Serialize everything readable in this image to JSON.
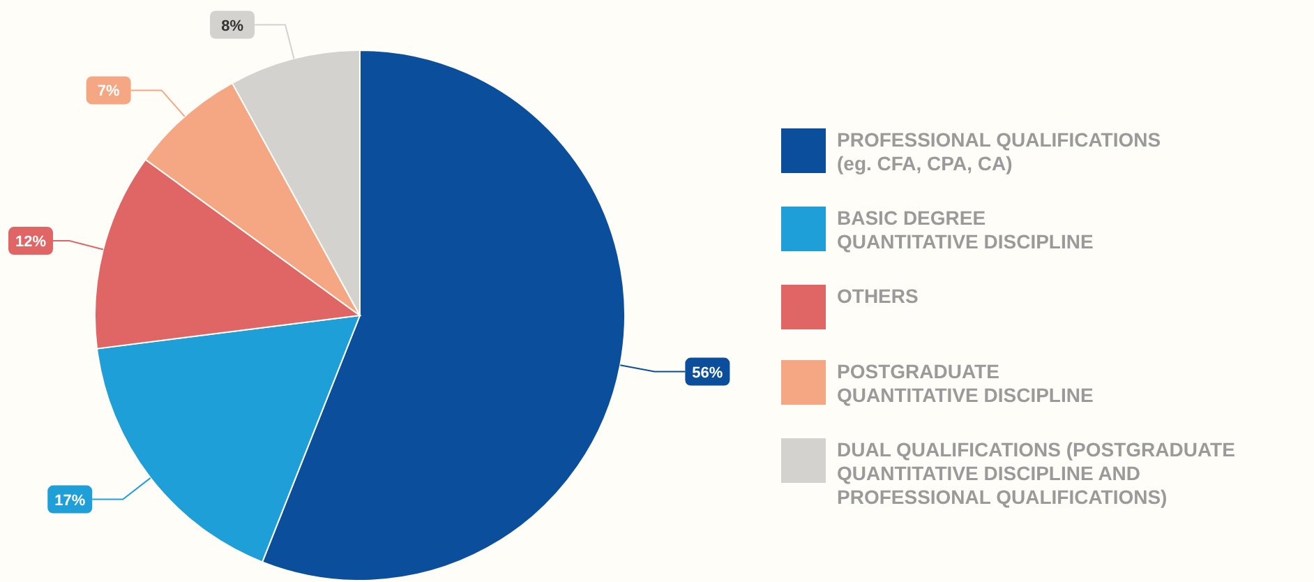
{
  "chart_data": {
    "type": "pie",
    "categories": [
      "PROFESSIONAL QUALIFICATIONS\n(eg. CFA, CPA, CA)",
      "BASIC DEGREE\nQUANTITATIVE DISCIPLINE",
      "OTHERS",
      "POSTGRADUATE\nQUANTITATIVE DISCIPLINE",
      "DUAL QUALIFICATIONS (POSTGRADUATE\nQUANTITATIVE DISCIPLINE AND\nPROFESSIONAL QUALIFICATIONS)"
    ],
    "values": [
      56,
      17,
      12,
      7,
      8
    ],
    "colors": [
      "#0b4f9c",
      "#1e9fd8",
      "#e06565",
      "#f5a683",
      "#d4d2cf"
    ],
    "value_labels": [
      "56%",
      "17%",
      "12%",
      "7%",
      "8%"
    ],
    "legend": "right"
  }
}
